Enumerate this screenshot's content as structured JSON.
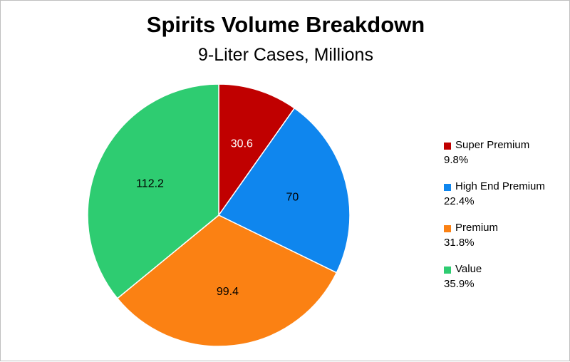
{
  "chart_data": {
    "type": "pie",
    "title": "Spirits Volume Breakdown",
    "subtitle": "9-Liter Cases, Millions",
    "legend_position": "right",
    "slices": [
      {
        "name": "Super Premium",
        "value": 30.6,
        "percent_label": "9.8%",
        "color": "#c00000"
      },
      {
        "name": "High End Premium",
        "value": 70,
        "percent_label": "22.4%",
        "color": "#0f86ee"
      },
      {
        "name": "Premium",
        "value": 99.4,
        "percent_label": "31.8%",
        "color": "#fb8113"
      },
      {
        "name": "Value",
        "value": 112.2,
        "percent_label": "35.9%",
        "color": "#2ecc71"
      }
    ]
  }
}
